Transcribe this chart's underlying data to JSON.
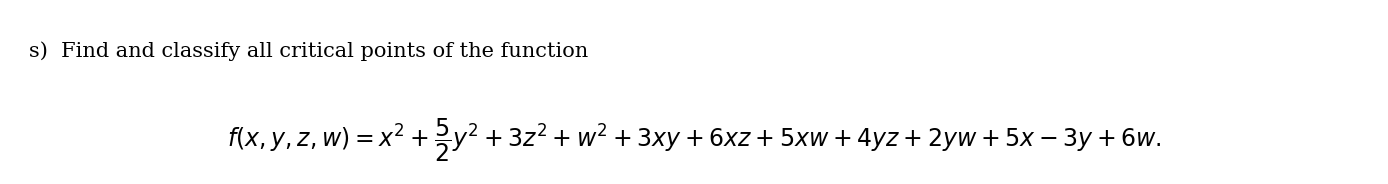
{
  "line1": "s)  Find and classify all critical points of the function",
  "line2": "$f(x, y, z, w) = x^2 + \\dfrac{5}{2}y^2 + 3z^2 + w^2 + 3xy + 6xz + 5xw + 4yz + 2yw + 5x - 3y + 6w.$",
  "bg_color": "#ffffff",
  "text_color": "#000000",
  "font_size_line1": 15,
  "font_size_line2": 17
}
